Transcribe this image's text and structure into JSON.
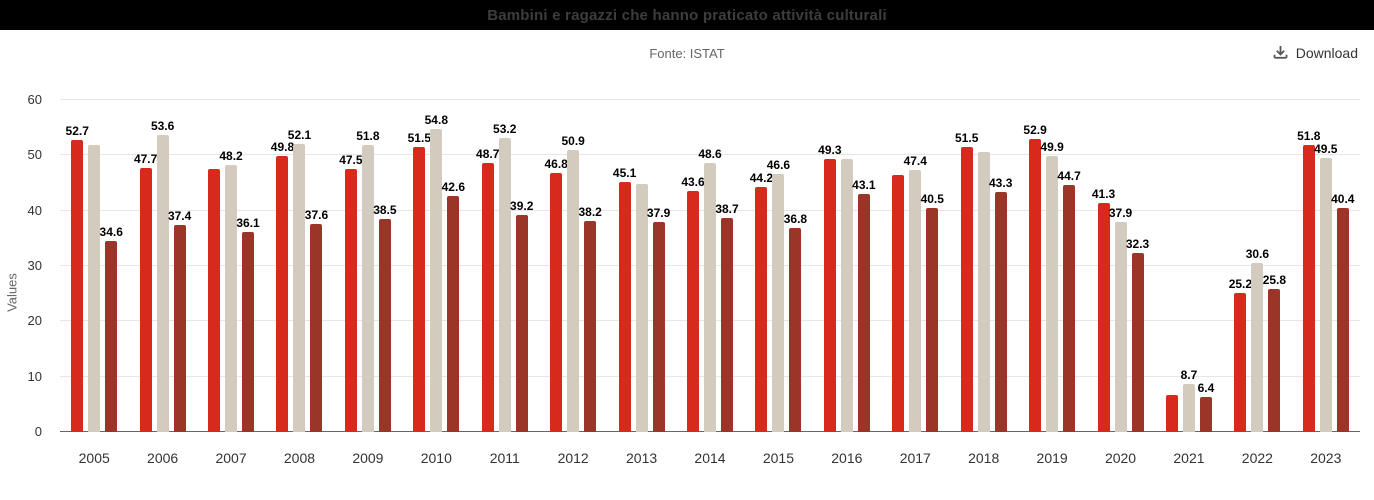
{
  "header": {
    "title": "Bambini e ragazzi che hanno praticato attività culturali",
    "bg_color": "#000000",
    "title_color": "#3d3d3d"
  },
  "subheader": {
    "source": "Fonte: ISTAT",
    "download_label": "Download"
  },
  "chart_data": {
    "type": "bar",
    "grouped": true,
    "title": "Bambini e ragazzi che hanno praticato attività culturali",
    "subtitle": "Fonte: ISTAT",
    "xlabel": "",
    "ylabel": "Values",
    "ylim": [
      0,
      60
    ],
    "yticks": [
      0,
      10,
      20,
      30,
      40,
      50,
      60
    ],
    "grid": "horizontal",
    "legend": "none",
    "categories": [
      "2005",
      "2006",
      "2007",
      "2008",
      "2009",
      "2010",
      "2011",
      "2012",
      "2013",
      "2014",
      "2015",
      "2016",
      "2017",
      "2018",
      "2019",
      "2020",
      "2021",
      "2022",
      "2023"
    ],
    "series": [
      {
        "name": "series-red",
        "color": "#d8291d",
        "values": [
          52.7,
          47.7,
          47.5,
          49.8,
          47.5,
          51.5,
          48.7,
          46.8,
          45.1,
          43.6,
          44.2,
          49.3,
          46.5,
          51.5,
          52.9,
          41.3,
          6.7,
          25.2,
          51.8
        ],
        "labels": [
          "52.7",
          "47.7",
          "",
          "49.8",
          "47.5",
          "51.5",
          "48.7",
          "46.8",
          "45.1",
          "43.6",
          "44.2",
          "49.3",
          "",
          "51.5",
          "52.9",
          "41.3",
          "",
          "25.2",
          "51.8"
        ]
      },
      {
        "name": "series-beige",
        "color": "#d3cbbe",
        "values": [
          51.9,
          53.6,
          48.2,
          52.1,
          51.8,
          54.8,
          53.2,
          50.9,
          44.9,
          48.6,
          46.6,
          49.3,
          47.4,
          50.6,
          49.9,
          37.9,
          8.7,
          30.6,
          49.5
        ],
        "labels": [
          "",
          "53.6",
          "48.2",
          "52.1",
          "51.8",
          "54.8",
          "53.2",
          "50.9",
          "",
          "48.6",
          "46.6",
          "",
          "47.4",
          "",
          "49.9",
          "37.9",
          "8.7",
          "30.6",
          "49.5"
        ]
      },
      {
        "name": "series-brown",
        "color": "#9a3528",
        "values": [
          34.6,
          37.4,
          36.1,
          37.6,
          38.5,
          42.6,
          39.2,
          38.2,
          37.9,
          38.7,
          36.8,
          43.1,
          40.5,
          43.3,
          44.7,
          32.3,
          6.4,
          25.8,
          40.4
        ],
        "labels": [
          "34.6",
          "37.4",
          "36.1",
          "37.6",
          "38.5",
          "42.6",
          "39.2",
          "38.2",
          "37.9",
          "38.7",
          "36.8",
          "43.1",
          "40.5",
          "43.3",
          "44.7",
          "32.3",
          "6.4",
          "25.8",
          "40.4"
        ]
      }
    ]
  }
}
